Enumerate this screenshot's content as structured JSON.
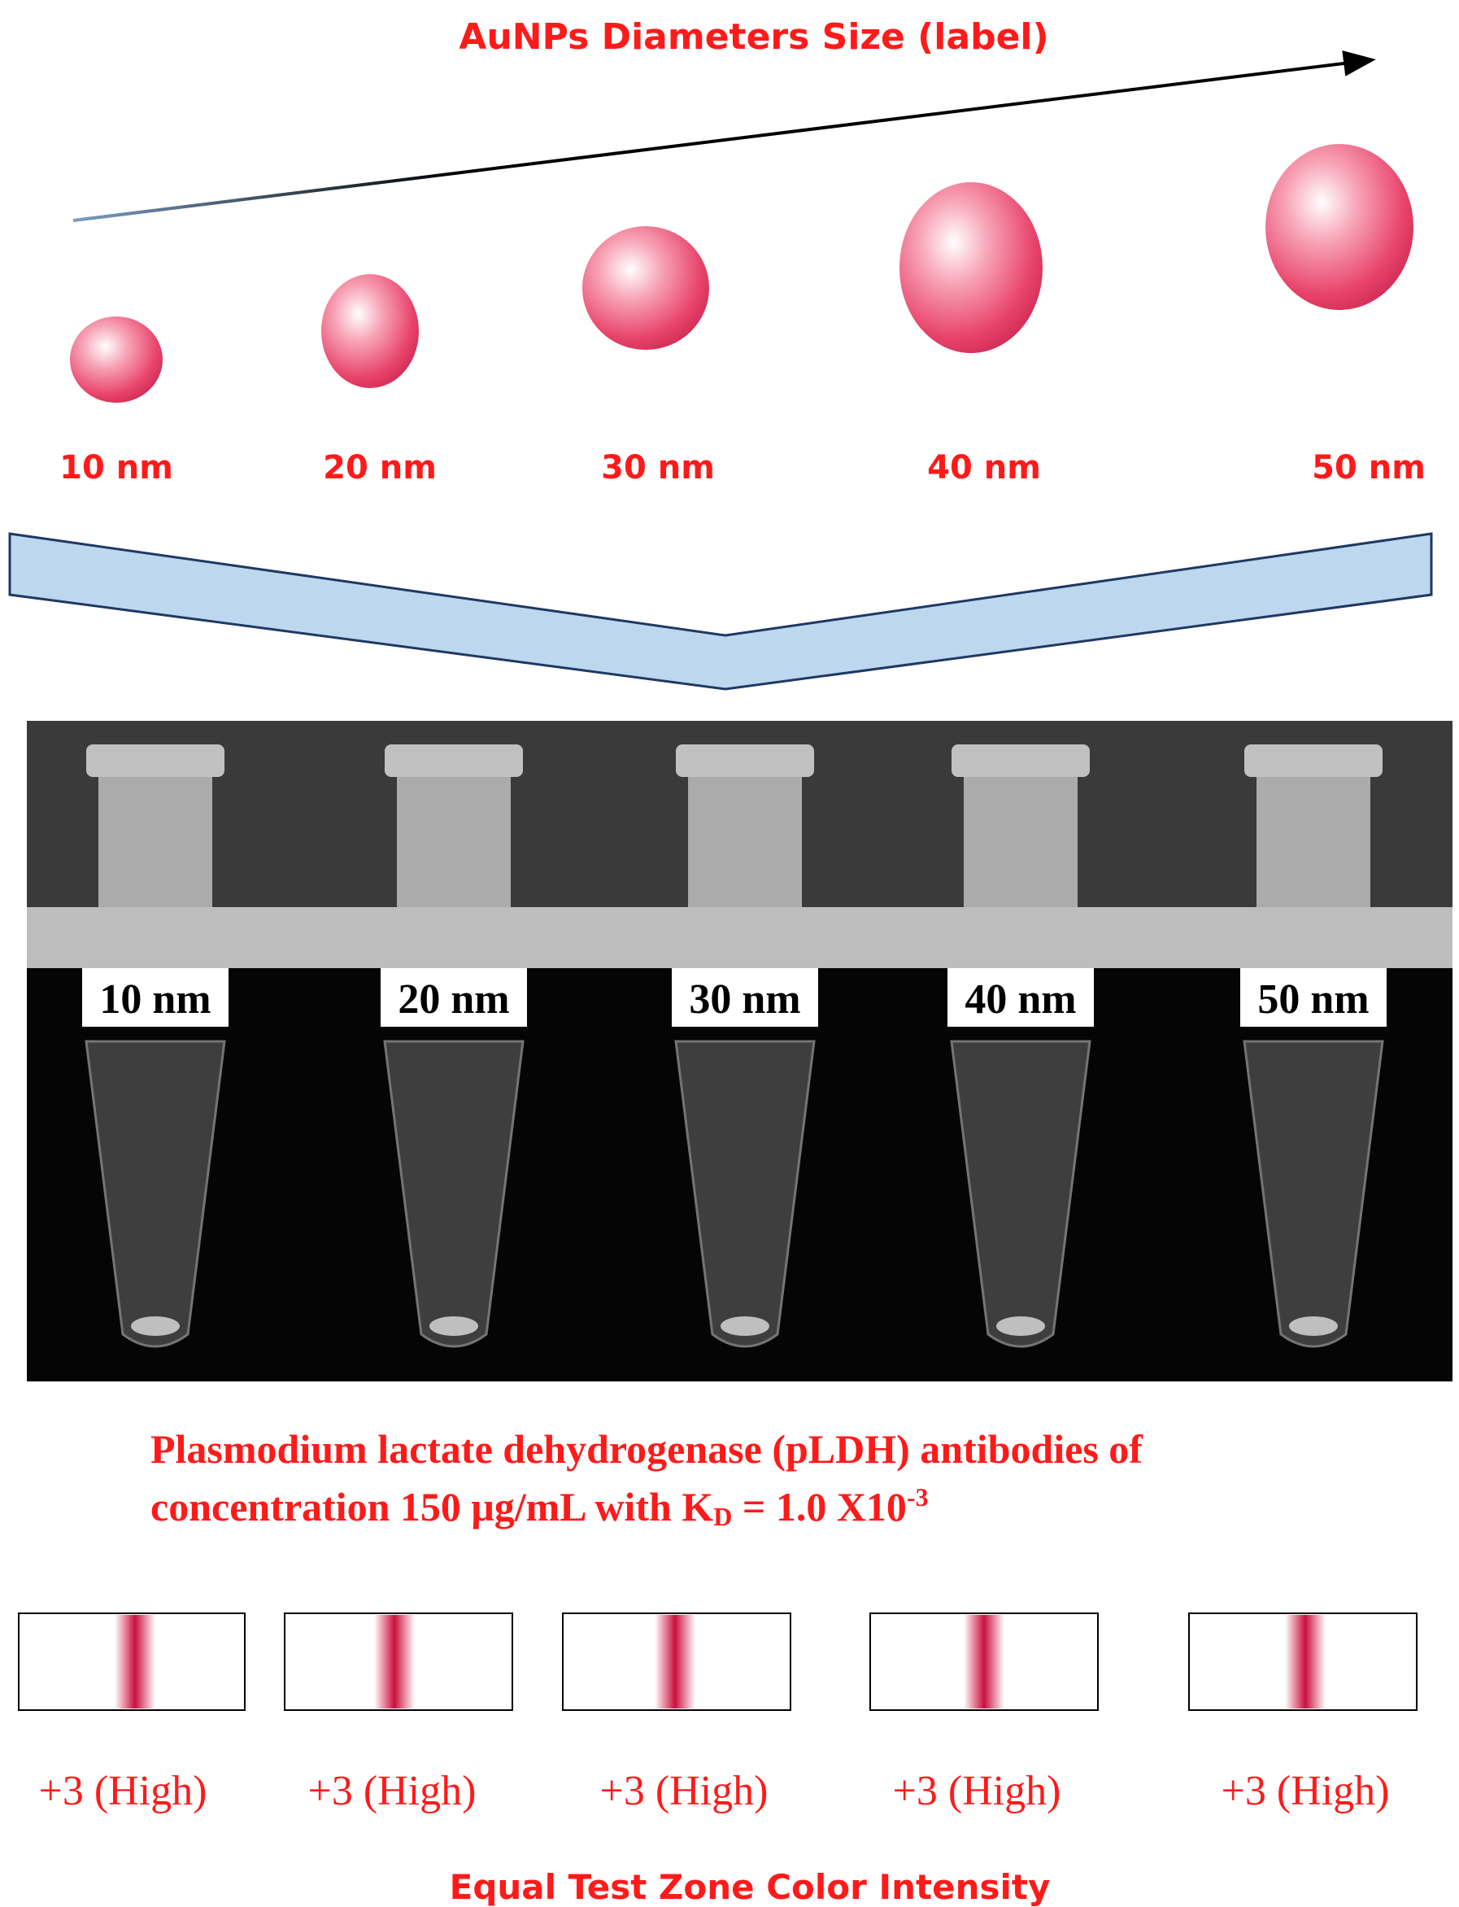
{
  "header": {
    "title": "AuNPs Diameters Size (label)"
  },
  "sizes": [
    "10 nm",
    "20 nm",
    "30 nm",
    "40 nm",
    "50 nm"
  ],
  "tube_labels": [
    "10 nm",
    "20 nm",
    "30 nm",
    "40 nm",
    "50 nm"
  ],
  "description": {
    "line1": "Plasmodium lactate dehydrogenase (pLDH) antibodies of",
    "line2": "concentration 150 μg/mL with K",
    "subscript": "D",
    "line2_rest": " = 1.0 X10",
    "superscript": "-3"
  },
  "results": [
    "+3 (High)",
    "+3 (High)",
    "+3 (High)",
    "+3 (High)",
    "+3 (High)"
  ],
  "footer": "Equal Test Zone Color Intensity"
}
